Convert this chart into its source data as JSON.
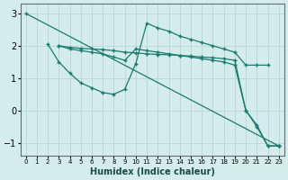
{
  "xlabel": "Humidex (Indice chaleur)",
  "ylabel": "",
  "xlim": [
    -0.5,
    23.5
  ],
  "ylim": [
    -1.4,
    3.3
  ],
  "xticks": [
    0,
    1,
    2,
    3,
    4,
    5,
    6,
    7,
    8,
    9,
    10,
    11,
    12,
    13,
    14,
    15,
    16,
    17,
    18,
    19,
    20,
    21,
    22,
    23
  ],
  "yticks": [
    -1,
    0,
    1,
    2,
    3
  ],
  "bg_color": "#d4ecec",
  "line_color": "#1a7a6e",
  "grid_color": "#bdd8d8",
  "lines": [
    {
      "x": [
        0,
        23
      ],
      "y": [
        3.0,
        -1.1
      ]
    },
    {
      "x": [
        2,
        3,
        4,
        5,
        6,
        7,
        8,
        9,
        10,
        11,
        12,
        13,
        14,
        15,
        16,
        17,
        18,
        19,
        20,
        21,
        22
      ],
      "y": [
        2.05,
        1.5,
        1.15,
        0.85,
        0.7,
        0.55,
        0.5,
        0.65,
        1.45,
        2.7,
        2.55,
        2.45,
        2.3,
        2.2,
        2.1,
        2.0,
        1.9,
        1.8,
        1.4,
        1.4,
        1.4
      ]
    },
    {
      "x": [
        3,
        4,
        5,
        6,
        7,
        8,
        9,
        10,
        11,
        12,
        13,
        14,
        15,
        16,
        17,
        18,
        19,
        20,
        21,
        22,
        23
      ],
      "y": [
        2.0,
        1.9,
        1.85,
        1.8,
        1.75,
        1.65,
        1.55,
        1.9,
        1.85,
        1.8,
        1.75,
        1.7,
        1.65,
        1.6,
        1.55,
        1.5,
        1.4,
        0.0,
        -0.5,
        -1.1,
        -1.1
      ]
    },
    {
      "x": [
        3,
        4,
        5,
        6,
        7,
        8,
        9,
        10,
        11,
        12,
        13,
        14,
        15,
        16,
        17,
        18,
        19,
        20,
        21,
        22,
        23
      ],
      "y": [
        2.0,
        1.95,
        1.92,
        1.9,
        1.88,
        1.85,
        1.8,
        1.78,
        1.75,
        1.73,
        1.72,
        1.7,
        1.68,
        1.65,
        1.63,
        1.6,
        1.55,
        0.0,
        -0.45,
        -1.1,
        -1.1
      ]
    }
  ]
}
